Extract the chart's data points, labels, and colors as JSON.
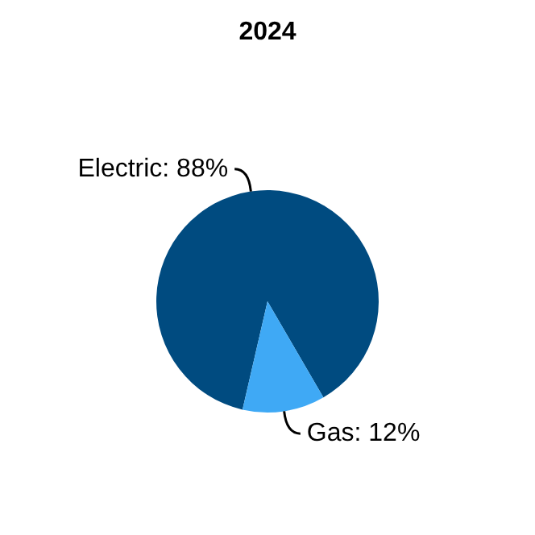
{
  "chart_data": {
    "type": "pie",
    "title": "2024",
    "categories": [
      "Electric",
      "Gas"
    ],
    "values": [
      88,
      12
    ],
    "colors": [
      "#004b80",
      "#3fa9f5"
    ],
    "value_labels": [
      "88%",
      "12%"
    ],
    "legend": false
  }
}
